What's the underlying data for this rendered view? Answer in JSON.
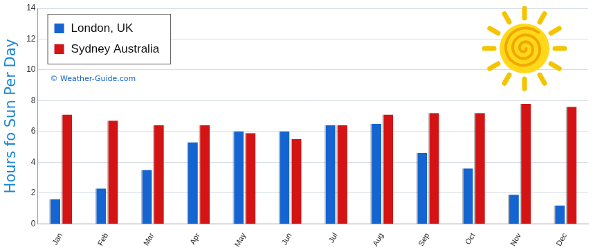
{
  "chart_data": {
    "type": "bar",
    "categories": [
      "Jan",
      "Feb",
      "Mar",
      "Apr",
      "May",
      "Jun",
      "Jul",
      "Aug",
      "Sep",
      "Oct",
      "Nov",
      "Dec"
    ],
    "series": [
      {
        "name": "London, UK",
        "color": "#1464d2",
        "values": [
          1.6,
          2.3,
          3.5,
          5.3,
          6.0,
          6.0,
          6.4,
          6.5,
          4.6,
          3.6,
          1.9,
          1.2
        ]
      },
      {
        "name": "Sydney Australia",
        "color": "#d41414",
        "values": [
          7.1,
          6.7,
          6.4,
          6.4,
          5.9,
          5.5,
          6.4,
          7.1,
          7.2,
          7.2,
          7.8,
          7.6
        ]
      }
    ],
    "y_label": "Hours fo Sun Per Day",
    "annotation": "© Weather-Guide.com",
    "ylim": [
      0,
      14
    ],
    "yticks": [
      0,
      2,
      4,
      6,
      8,
      10,
      12,
      14
    ],
    "grid": true,
    "legend": "upper left"
  }
}
